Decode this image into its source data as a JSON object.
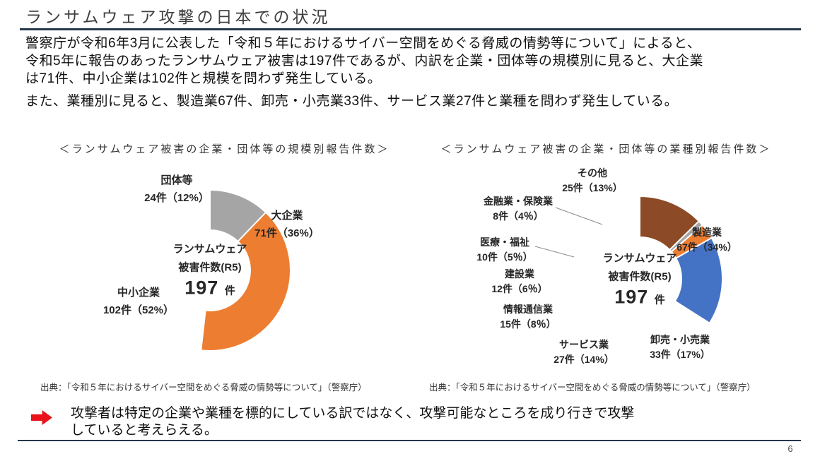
{
  "slide": {
    "title": "ランサムウェア攻撃の日本での状況",
    "paragraph1": "警察庁が令和6年3月に公表した「令和５年におけるサイバー空間をめぐる脅威の情勢等について」によると、\n令和5年に報告のあったランサムウェア被害は197件であるが、内訳を企業・団体等の規模別に見ると、大企業\nは71件、中小企業は102件と規模を問わず発生している。",
    "paragraph2": "また、業種別に見ると、製造業67件、卸売・小売業33件、サービス業27件と業種を問わず発生している。",
    "conclusion": "攻撃者は特定の企業や業種を標的にしている訳ではなく、攻撃可能なところを成り行きで攻撃\nしていると考えらえる。",
    "page_number": "6",
    "colors": {
      "rule": "#25384A",
      "arrow_red": "#E8131B"
    }
  },
  "chart_data": [
    {
      "type": "pie",
      "subtype": "donut",
      "title": "＜ランサムウェア被害の企業・団体等の規模別報告件数＞",
      "center_line1": "ランサムウェア",
      "center_line2": "被害件数(R5)",
      "center_value": "197",
      "center_unit": "件",
      "total": 197,
      "start_angle_deg": 0,
      "direction": "clockwise-from-top",
      "segments": [
        {
          "label": "大企業",
          "value": 71,
          "display": "71件（36%）",
          "color": "#4472C4"
        },
        {
          "label": "中小企業",
          "value": 102,
          "display": "102件（52%）",
          "color": "#ED7D31"
        },
        {
          "label": "団体等",
          "value": 24,
          "display": "24件（12%）",
          "color": "#A5A5A5"
        }
      ],
      "source": "出典：「令和５年におけるサイバー空間をめぐる脅威の情勢等について」（警察庁）"
    },
    {
      "type": "pie",
      "subtype": "donut",
      "title": "＜ランサムウェア被害の企業・団体等の業種別報告件数＞",
      "center_line1": "ランサムウェア",
      "center_line2": "被害件数(R5)",
      "center_value": "197",
      "center_unit": "件",
      "total": 197,
      "start_angle_deg": 0,
      "direction": "clockwise-from-top",
      "segments": [
        {
          "label": "製造業",
          "value": 67,
          "display": "67件（34%）",
          "color": "#4472C4"
        },
        {
          "label": "卸売・小売業",
          "value": 33,
          "display": "33件（17%）",
          "color": "#ED7D31"
        },
        {
          "label": "サービス業",
          "value": 27,
          "display": "27件（14%）",
          "color": "#A5A5A5"
        },
        {
          "label": "情報通信業",
          "value": 15,
          "display": "15件（8％）",
          "color": "#FFC000"
        },
        {
          "label": "建設業",
          "value": 12,
          "display": "12件（6％）",
          "color": "#5B9BD5"
        },
        {
          "label": "医療・福祉",
          "value": 10,
          "display": "10件（5％）",
          "color": "#70AD47"
        },
        {
          "label": "金融業・保険業",
          "value": 8,
          "display": "8件（4％）",
          "color": "#264478"
        },
        {
          "label": "その他",
          "value": 25,
          "display": "25件（13%）",
          "color": "#8C4A26"
        }
      ],
      "source": "出典：「令和５年におけるサイバー空間をめぐる脅威の情勢等について」（警察庁）"
    }
  ]
}
